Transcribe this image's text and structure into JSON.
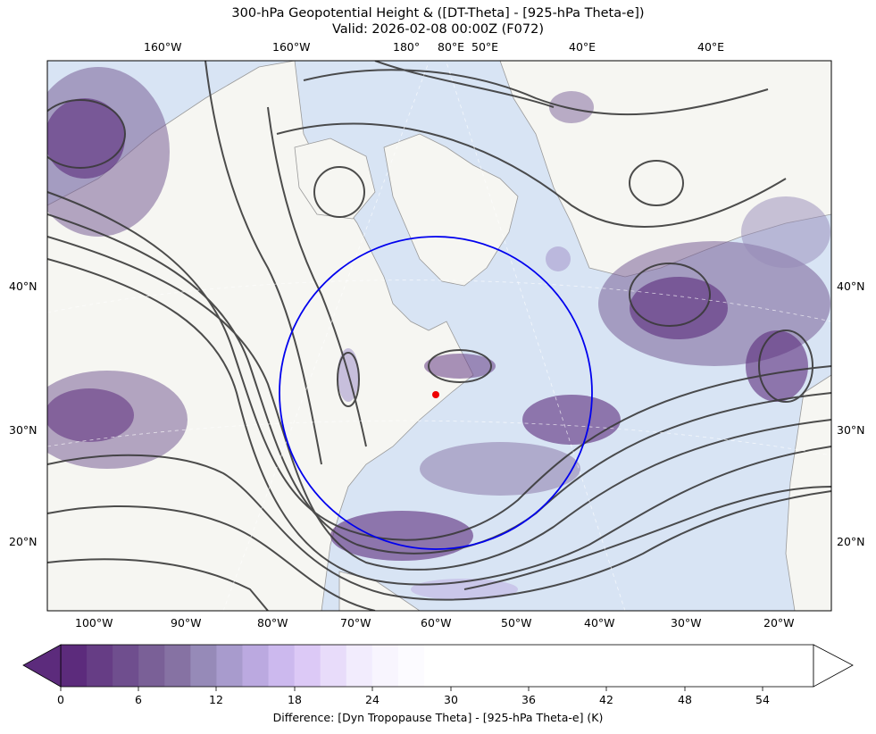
{
  "title": {
    "line1": "300-hPa Geopotential Height & ([DT-Theta] - [925-hPa Theta-e])",
    "line2": "Valid: 2026-02-08 00:00Z (F072)"
  },
  "map": {
    "top_ticks": [
      "160°W",
      "160°W",
      "180°",
      "80°E",
      "50°E",
      "40°E",
      "40°E"
    ],
    "bottom_ticks": [
      "100°W",
      "90°W",
      "80°W",
      "70°W",
      "60°W",
      "50°W",
      "40°W",
      "30°W",
      "20°W"
    ],
    "left_ticks": [
      "40°N",
      "30°N",
      "20°N"
    ],
    "right_ticks": [
      "40°N",
      "30°N",
      "20°N"
    ],
    "colors": {
      "ocean": "#d8e4f4",
      "land": "#f6f6f2",
      "contour": "#3a3a3a",
      "circle": "#0000ee",
      "point": "#ee0000"
    }
  },
  "colorbar": {
    "label": "Difference: [Dyn Tropopause Theta] - [925-hPa Theta-e] (K)",
    "ticks": [
      "0",
      "6",
      "12",
      "18",
      "24",
      "30",
      "36",
      "42",
      "48",
      "54"
    ],
    "colors": [
      "#5c2b7c",
      "#663d85",
      "#6f4e8e",
      "#7a6097",
      "#8672a3",
      "#968ab8",
      "#a89bcd",
      "#bba9e0",
      "#ccb9ee",
      "#dcc9f6",
      "#e8dcfa",
      "#f2ecfd",
      "#f8f5fe",
      "#fcfbff",
      "#ffffff"
    ]
  }
}
